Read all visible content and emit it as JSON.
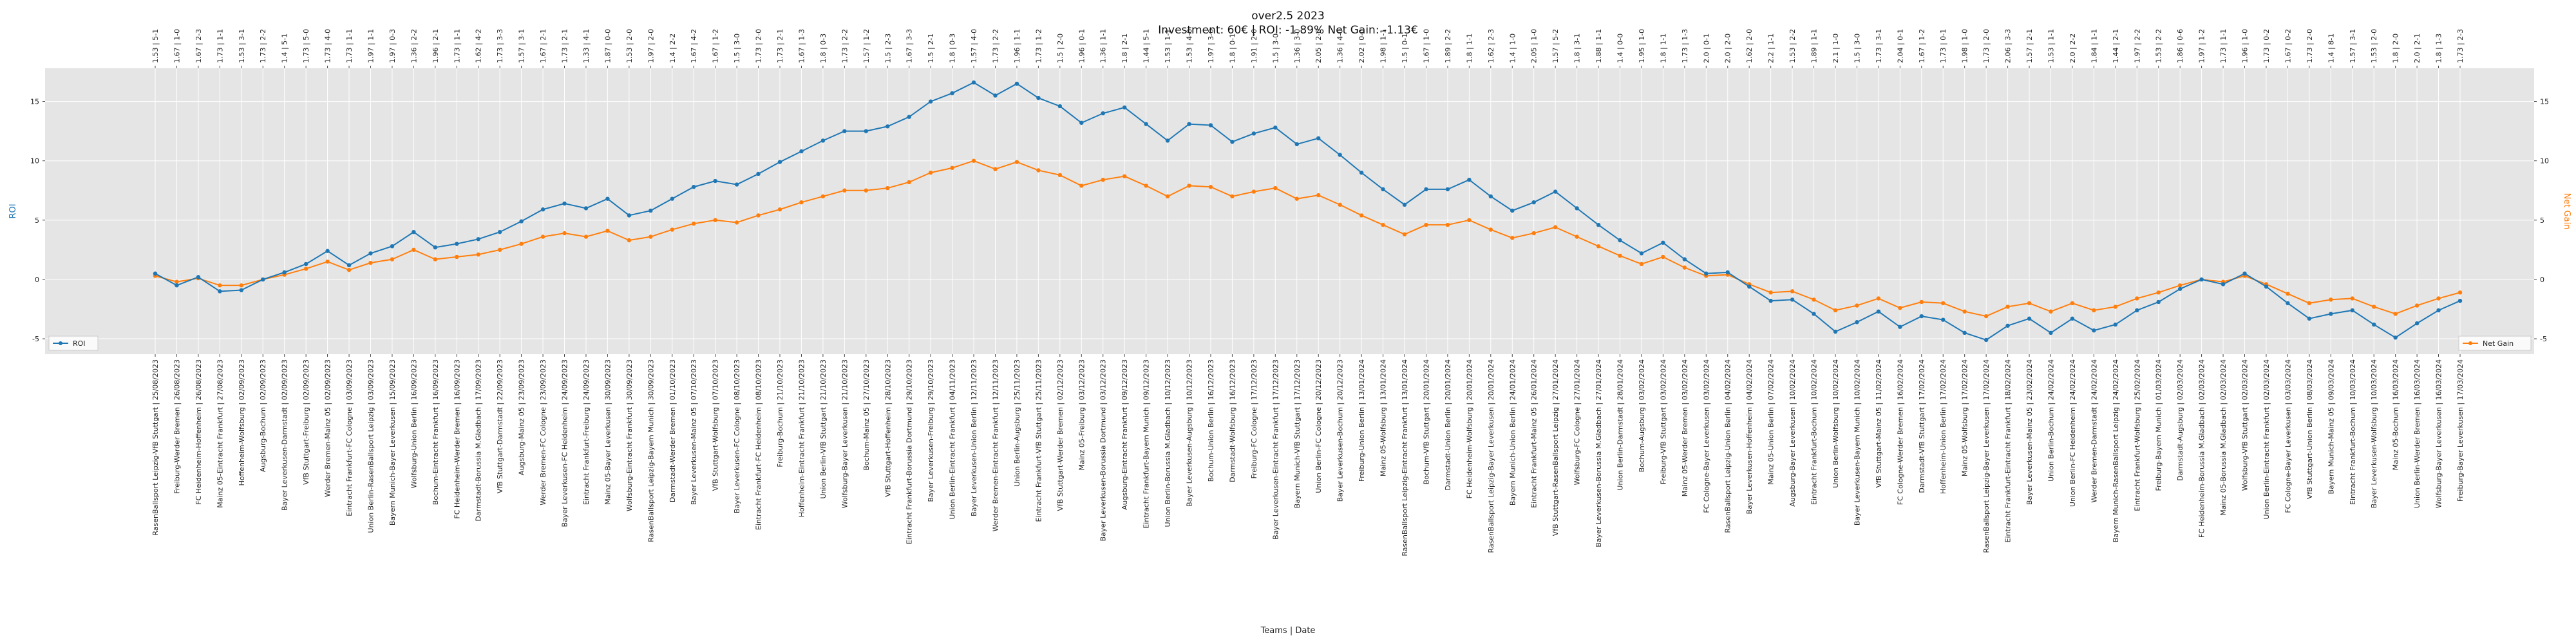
{
  "chart_data": {
    "type": "line",
    "title": "over2.5 2023",
    "subtitle": "Investment: 60€ | ROI: -1.89% Net Gain: -1.13€",
    "xlabel": "Teams | Date",
    "ylabel_left": "ROI",
    "ylabel_right": "Net Gain",
    "ylim_left": [
      -6.3,
      17.8
    ],
    "ylim_right": [
      -6.3,
      17.8
    ],
    "yticks": [
      -5,
      0,
      5,
      10,
      15
    ],
    "grid": true,
    "legend_left": "bottom-left",
    "legend_right": "bottom-right",
    "colors": {
      "roi": "#1f77b4",
      "net_gain": "#ff7f0e",
      "plot_bg": "#e5e5e5",
      "grid": "#ffffff"
    },
    "categories": [
      "RasenBallsport Leipzig-VfB Stuttgart | 25/08/2023",
      "Freiburg-Werder Bremen | 26/08/2023",
      "FC Heidenheim-Hoffenheim | 26/08/2023",
      "Mainz 05-Eintracht Frankfurt | 27/08/2023",
      "Hoffenheim-Wolfsburg | 02/09/2023",
      "Augsburg-Bochum | 02/09/2023",
      "Bayer Leverkusen-Darmstadt | 02/09/2023",
      "VfB Stuttgart-Freiburg | 02/09/2023",
      "Werder Bremen-Mainz 05 | 02/09/2023",
      "Eintracht Frankfurt-FC Cologne | 03/09/2023",
      "Union Berlin-RasenBallsport Leipzig | 03/09/2023",
      "Bayern Munich-Bayer Leverkusen | 15/09/2023",
      "Wolfsburg-Union Berlin | 16/09/2023",
      "Bochum-Eintracht Frankfurt | 16/09/2023",
      "FC Heidenheim-Werder Bremen | 16/09/2023",
      "Darmstadt-Borussia M.Gladbach | 17/09/2023",
      "VfB Stuttgart-Darmstadt | 22/09/2023",
      "Augsburg-Mainz 05 | 23/09/2023",
      "Werder Bremen-FC Cologne | 23/09/2023",
      "Bayer Leverkusen-FC Heidenheim | 24/09/2023",
      "Eintracht Frankfurt-Freiburg | 24/09/2023",
      "Mainz 05-Bayer Leverkusen | 30/09/2023",
      "Wolfsburg-Eintracht Frankfurt | 30/09/2023",
      "RasenBallsport Leipzig-Bayern Munich | 30/09/2023",
      "Darmstadt-Werder Bremen | 01/10/2023",
      "Bayer Leverkusen-Mainz 05 | 07/10/2023",
      "VfB Stuttgart-Wolfsburg | 07/10/2023",
      "Bayer Leverkusen-FC Cologne | 08/10/2023",
      "Eintracht Frankfurt-FC Heidenheim | 08/10/2023",
      "Freiburg-Bochum | 21/10/2023",
      "Hoffenheim-Eintracht Frankfurt | 21/10/2023",
      "Union Berlin-VfB Stuttgart | 21/10/2023",
      "Wolfsburg-Bayer Leverkusen | 21/10/2023",
      "Bochum-Mainz 05 | 27/10/2023",
      "VfB Stuttgart-Hoffenheim | 28/10/2023",
      "Eintracht Frankfurt-Borussia Dortmund | 29/10/2023",
      "Bayer Leverkusen-Freiburg | 29/10/2023",
      "Union Berlin-Eintracht Frankfurt | 04/11/2023",
      "Bayer Leverkusen-Union Berlin | 12/11/2023",
      "Werder Bremen-Eintracht Frankfurt | 12/11/2023",
      "Union Berlin-Augsburg | 25/11/2023",
      "Eintracht Frankfurt-VfB Stuttgart | 25/11/2023",
      "VfB Stuttgart-Werder Bremen | 02/12/2023",
      "Mainz 05-Freiburg | 03/12/2023",
      "Bayer Leverkusen-Borussia Dortmund | 03/12/2023",
      "Augsburg-Eintracht Frankfurt | 09/12/2023",
      "Eintracht Frankfurt-Bayern Munich | 09/12/2023",
      "Union Berlin-Borussia M.Gladbach | 10/12/2023",
      "Bayer Leverkusen-Augsburg | 10/12/2023",
      "Bochum-Union Berlin | 16/12/2023",
      "Darmstadt-Wolfsburg | 16/12/2023",
      "Freiburg-FC Cologne | 17/12/2023",
      "Bayer Leverkusen-Eintracht Frankfurt | 17/12/2023",
      "Bayern Munich-VfB Stuttgart | 17/12/2023",
      "Union Berlin-FC Cologne | 20/12/2023",
      "Bayer Leverkusen-Bochum | 20/12/2023",
      "Freiburg-Union Berlin | 13/01/2024",
      "Mainz 05-Wolfsburg | 13/01/2024",
      "RasenBallsport Leipzig-Eintracht Frankfurt | 13/01/2024",
      "Bochum-VfB Stuttgart | 20/01/2024",
      "Darmstadt-Union Berlin | 20/01/2024",
      "FC Heidenheim-Wolfsburg | 20/01/2024",
      "RasenBallsport Leipzig-Bayer Leverkusen | 20/01/2024",
      "Bayern Munich-Union Berlin | 24/01/2024",
      "Eintracht Frankfurt-Mainz 05 | 26/01/2024",
      "VfB Stuttgart-RasenBallsport Leipzig | 27/01/2024",
      "Wolfsburg-FC Cologne | 27/01/2024",
      "Bayer Leverkusen-Borussia M.Gladbach | 27/01/2024",
      "Union Berlin-Darmstadt | 28/01/2024",
      "Bochum-Augsburg | 03/02/2024",
      "Freiburg-VfB Stuttgart | 03/02/2024",
      "Mainz 05-Werder Bremen | 03/02/2024",
      "FC Cologne-Bayer Leverkusen | 03/02/2024",
      "RasenBallsport Leipzig-Union Berlin | 04/02/2024",
      "Bayer Leverkusen-Hoffenheim | 04/02/2024",
      "Mainz 05-Union Berlin | 07/02/2024",
      "Augsburg-Bayer Leverkusen | 10/02/2024",
      "Eintracht Frankfurt-Bochum | 10/02/2024",
      "Union Berlin-Wolfsburg | 10/02/2024",
      "Bayer Leverkusen-Bayern Munich | 10/02/2024",
      "VfB Stuttgart-Mainz 05 | 11/02/2024",
      "FC Cologne-Werder Bremen | 16/02/2024",
      "Darmstadt-VfB Stuttgart | 17/02/2024",
      "Hoffenheim-Union Berlin | 17/02/2024",
      "Mainz 05-Wolfsburg | 17/02/2024",
      "RasenBallsport Leipzig-Bayer Leverkusen | 17/02/2024",
      "Eintracht Frankfurt-Eintracht Frankfurt | 18/02/2024",
      "Bayer Leverkusen-Mainz 05 | 23/02/2024",
      "Union Berlin-Bochum | 24/02/2024",
      "Union Berlin-FC Heidenheim | 24/02/2024",
      "Werder Bremen-Darmstadt | 24/02/2024",
      "Bayern Munich-RasenBallsport Leipzig | 24/02/2024",
      "Eintracht Frankfurt-Wolfsburg | 25/02/2024",
      "Freiburg-Bayern Munich | 01/03/2024",
      "Darmstadt-Augsburg | 02/03/2024",
      "FC Heidenheim-Borussia M.Gladbach | 02/03/2024",
      "Mainz 05-Borussia M.Gladbach | 02/03/2024",
      "Wolfsburg-VfB Stuttgart | 02/03/2024",
      "Union Berlin-Eintracht Frankfurt | 02/03/2024",
      "FC Cologne-Bayer Leverkusen | 03/03/2024",
      "VfB Stuttgart-Union Berlin | 08/03/2024",
      "Bayern Munich-Mainz 05 | 09/03/2024",
      "Eintracht Frankfurt-Bochum | 10/03/2024",
      "Bayer Leverkusen-Wolfsburg | 10/03/2024",
      "Mainz 05-Bochum | 16/03/2024",
      "Union Berlin-Werder Bremen | 16/03/2024",
      "Wolfsburg-Bayer Leverkusen | 16/03/2024",
      "Freiburg-Bayer Leverkusen | 17/03/2024"
    ],
    "top_labels": [
      "1.53 | 5-1",
      "1.67 | 1-0",
      "1.67 | 2-3",
      "1.73 | 1-1",
      "1.53 | 3-1",
      "1.73 | 2-2",
      "1.4 | 5-1",
      "1.73 | 5-0",
      "1.73 | 4-0",
      "1.73 | 1-1",
      "1.97 | 1-1",
      "1.97 | 0-3",
      "1.36 | 2-2",
      "1.96 | 2-1",
      "1.73 | 1-1",
      "1.62 | 4-2",
      "1.73 | 3-3",
      "1.57 | 3-1",
      "1.67 | 2-1",
      "1.73 | 2-1",
      "1.33 | 4-1",
      "1.87 | 0-0",
      "1.53 | 2-0",
      "1.97 | 2-0",
      "1.4 | 2-2",
      "1.67 | 4-2",
      "1.67 | 1-2",
      "1.5 | 3-0",
      "1.73 | 2-0",
      "1.73 | 2-1",
      "1.67 | 1-3",
      "1.8 | 0-3",
      "1.73 | 2-2",
      "1.57 | 1-2",
      "1.5 | 2-3",
      "1.67 | 3-3",
      "1.5 | 2-1",
      "1.8 | 0-3",
      "1.57 | 4-0",
      "1.73 | 2-2",
      "1.96 | 1-1",
      "1.73 | 1-2",
      "1.5 | 2-0",
      "1.96 | 0-1",
      "1.36 | 1-1",
      "1.8 | 2-1",
      "1.44 | 5-1",
      "1.53 | 1-1",
      "1.53 | 4-0",
      "1.97 | 3-0",
      "1.8 | 0-1",
      "1.91 | 2-0",
      "1.5 | 3-0",
      "1.36 | 3-0",
      "2.05 | 2-0",
      "1.36 | 4-0",
      "2.02 | 0-0",
      "1.98 | 1-1",
      "1.5 | 0-1",
      "1.67 | 1-0",
      "1.89 | 2-2",
      "1.8 | 1-1",
      "1.62 | 2-3",
      "1.4 | 1-0",
      "2.05 | 1-0",
      "1.57 | 5-2",
      "1.8 | 3-1",
      "1.88 | 1-1",
      "1.4 | 0-0",
      "1.95 | 1-0",
      "1.8 | 1-1",
      "1.73 | 1-3",
      "2.0 | 0-1",
      "2.0 | 2-0",
      "1.62 | 2-0",
      "2.2 | 1-1",
      "1.53 | 2-2",
      "1.89 | 1-1",
      "2.1 | 1-0",
      "1.5 | 3-0",
      "1.73 | 3-1",
      "2.04 | 0-1",
      "1.67 | 1-2",
      "1.73 | 0-1",
      "1.98 | 1-0",
      "1.73 | 2-0",
      "2.06 | 3-3",
      "1.57 | 2-1",
      "1.53 | 1-1",
      "2.0 | 2-2",
      "1.84 | 1-1",
      "1.44 | 2-1",
      "1.97 | 2-2",
      "1.53 | 2-2",
      "1.86 | 0-6",
      "1.97 | 1-2",
      "1.73 | 1-1",
      "1.96 | 1-0",
      "1.73 | 0-2",
      "1.67 | 0-2",
      "1.73 | 2-0",
      "1.4 | 8-1",
      "1.57 | 3-1",
      "1.53 | 2-0",
      "1.8 | 2-0",
      "2.0 | 2-1",
      "1.8 | 1-3",
      "1.73 | 2-3"
    ],
    "series": [
      {
        "name": "ROI",
        "values": [
          0.5,
          -0.5,
          0.2,
          -1.0,
          -0.9,
          0.0,
          0.6,
          1.3,
          2.4,
          1.2,
          2.2,
          2.8,
          4.0,
          2.7,
          3.0,
          3.4,
          4.0,
          4.9,
          5.9,
          6.4,
          6.0,
          6.8,
          5.4,
          5.8,
          6.8,
          7.8,
          8.3,
          8.0,
          8.9,
          9.9,
          10.8,
          11.7,
          12.5,
          12.5,
          12.9,
          13.7,
          15.0,
          15.7,
          16.6,
          15.5,
          16.5,
          15.3,
          14.6,
          13.2,
          14.0,
          14.5,
          13.1,
          11.7,
          13.1,
          13.0,
          11.6,
          12.3,
          12.8,
          11.4,
          11.9,
          10.5,
          9.0,
          7.6,
          6.3,
          7.6,
          7.6,
          8.4,
          7.0,
          5.8,
          6.5,
          7.4,
          6.0,
          4.6,
          3.3,
          2.2,
          3.1,
          1.7,
          0.5,
          0.6,
          -0.6,
          -1.8,
          -1.7,
          -2.9,
          -4.4,
          -3.6,
          -2.7,
          -4.0,
          -3.1,
          -3.4,
          -4.5,
          -5.1,
          -3.9,
          -3.3,
          -4.5,
          -3.3,
          -4.3,
          -3.8,
          -2.6,
          -1.9,
          -0.8,
          0.0,
          -0.4,
          0.5,
          -0.6,
          -2.0,
          -3.3,
          -2.9,
          -2.6,
          -3.8,
          -4.9,
          -3.7,
          -2.6,
          -1.8
        ]
      },
      {
        "name": "Net Gain",
        "values": [
          0.3,
          -0.2,
          0.1,
          -0.5,
          -0.5,
          0.0,
          0.4,
          0.9,
          1.5,
          0.8,
          1.4,
          1.7,
          2.5,
          1.7,
          1.9,
          2.1,
          2.5,
          3.0,
          3.6,
          3.9,
          3.6,
          4.1,
          3.3,
          3.6,
          4.2,
          4.7,
          5.0,
          4.8,
          5.4,
          5.9,
          6.5,
          7.0,
          7.5,
          7.5,
          7.7,
          8.2,
          9.0,
          9.4,
          10.0,
          9.3,
          9.9,
          9.2,
          8.8,
          7.9,
          8.4,
          8.7,
          7.9,
          7.0,
          7.9,
          7.8,
          7.0,
          7.4,
          7.7,
          6.8,
          7.1,
          6.3,
          5.4,
          4.6,
          3.8,
          4.6,
          4.6,
          5.0,
          4.2,
          3.5,
          3.9,
          4.4,
          3.6,
          2.8,
          2.0,
          1.3,
          1.9,
          1.0,
          0.3,
          0.4,
          -0.4,
          -1.1,
          -1.0,
          -1.7,
          -2.6,
          -2.2,
          -1.6,
          -2.4,
          -1.9,
          -2.0,
          -2.7,
          -3.1,
          -2.3,
          -2.0,
          -2.7,
          -2.0,
          -2.6,
          -2.3,
          -1.6,
          -1.1,
          -0.5,
          0.0,
          -0.2,
          0.3,
          -0.4,
          -1.2,
          -2.0,
          -1.7,
          -1.6,
          -2.3,
          -2.9,
          -2.2,
          -1.6,
          -1.1
        ]
      }
    ]
  }
}
